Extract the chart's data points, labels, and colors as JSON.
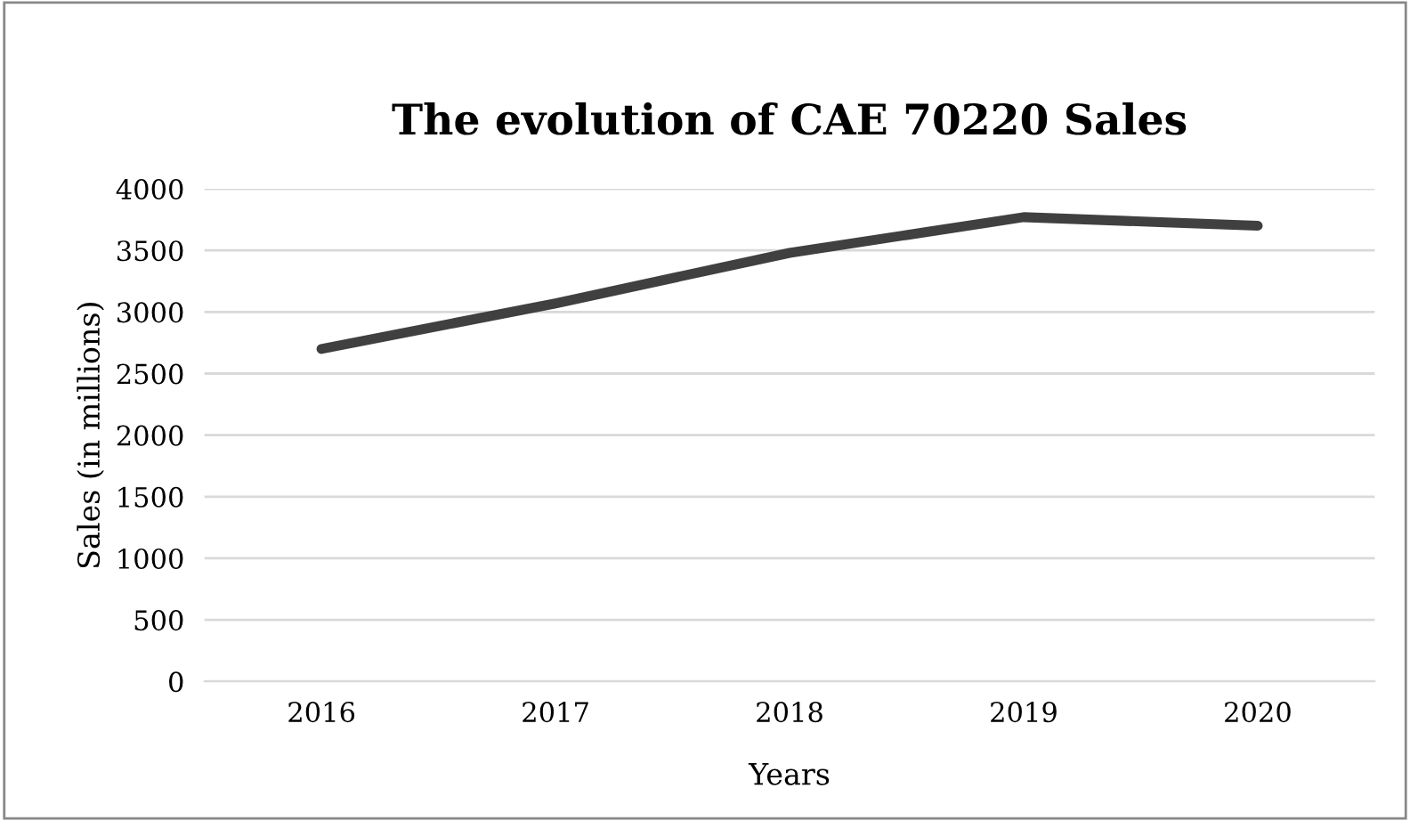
{
  "chart_data": {
    "type": "line",
    "title": "The evolution of CAE 70220 Sales",
    "xlabel": "Years",
    "ylabel": "Sales (in millions)",
    "categories": [
      "2016",
      "2017",
      "2018",
      "2019",
      "2020"
    ],
    "series": [
      {
        "color": "#404040",
        "values": [
          2700,
          3070,
          3480,
          3770,
          3700
        ]
      }
    ],
    "ylim": [
      0,
      4000
    ],
    "yticks": [
      0,
      500,
      1000,
      1500,
      2000,
      2500,
      3000,
      3500,
      4000
    ],
    "grid": "y",
    "legend": false,
    "marker": "none",
    "line_style": "solid"
  }
}
